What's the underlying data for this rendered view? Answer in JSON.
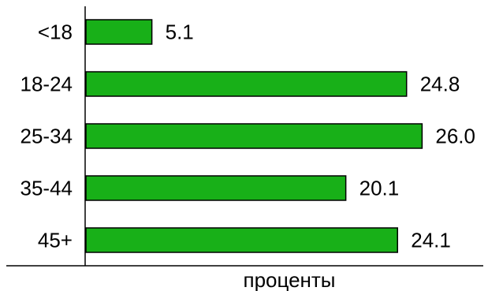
{
  "chart_data": {
    "type": "bar",
    "orientation": "horizontal",
    "categories": [
      "<18",
      "18-24",
      "25-34",
      "35-44",
      "45+"
    ],
    "values": [
      5.1,
      24.8,
      26.0,
      20.1,
      24.1
    ],
    "value_labels": [
      "5.1",
      "24.8",
      "26.0",
      "20.1",
      "24.1"
    ],
    "xlabel": "проценты",
    "ylabel": "",
    "xlim": [
      0,
      30
    ],
    "grid": false,
    "legend": "none",
    "bar_color": "#18b018",
    "bar_edge_color": "#000000"
  }
}
